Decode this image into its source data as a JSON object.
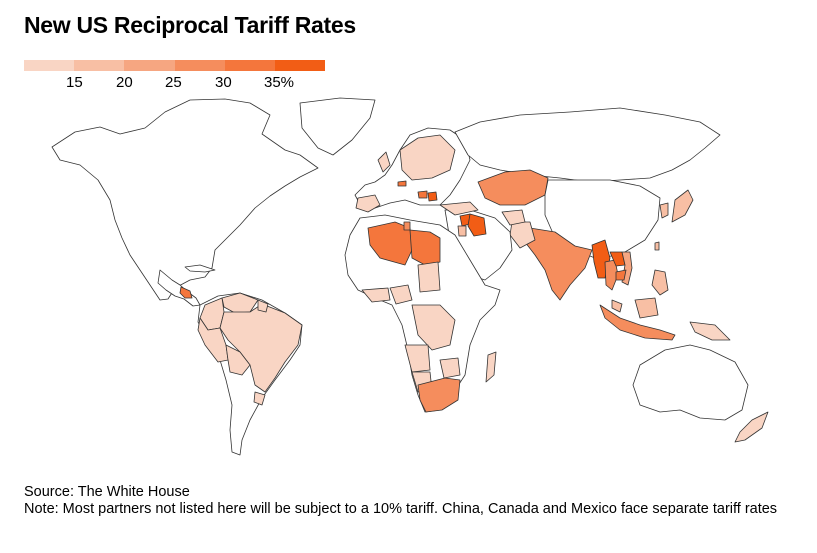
{
  "title": "New US Reciprocal Tariff Rates",
  "legend": {
    "colors": [
      "#f9d5c4",
      "#f8bfa4",
      "#f6a681",
      "#f58d5d",
      "#f4763c",
      "#f25d15"
    ],
    "labels": [
      "15",
      "20",
      "25",
      "30",
      "35%"
    ]
  },
  "map": {
    "land_color": "#ffffff",
    "border_color": "#333333",
    "countries": [
      {
        "name": "Brazil",
        "color": "#f9d5c4"
      },
      {
        "name": "Peru",
        "color": "#f9d5c4"
      },
      {
        "name": "Venezuela",
        "color": "#f9d5c4"
      },
      {
        "name": "Colombia",
        "color": "#f9d5c4"
      },
      {
        "name": "Bolivia",
        "color": "#f9d5c4"
      },
      {
        "name": "Nicaragua",
        "color": "#f4763c"
      },
      {
        "name": "Algeria",
        "color": "#f4763c"
      },
      {
        "name": "Libya",
        "color": "#f4763c"
      },
      {
        "name": "Iraq",
        "color": "#f25d15"
      },
      {
        "name": "Syria",
        "color": "#f25d15"
      },
      {
        "name": "Kazakhstan",
        "color": "#f58d5d"
      },
      {
        "name": "India",
        "color": "#f58d5d"
      },
      {
        "name": "Myanmar",
        "color": "#f25d15"
      },
      {
        "name": "Laos",
        "color": "#f25d15"
      },
      {
        "name": "Thailand",
        "color": "#f58d5d"
      },
      {
        "name": "Vietnam",
        "color": "#f6a681"
      },
      {
        "name": "South Africa",
        "color": "#f58d5d"
      },
      {
        "name": "Serbia",
        "color": "#f25d15"
      },
      {
        "name": "Bosnia",
        "color": "#f4763c"
      },
      {
        "name": "Switzerland",
        "color": "#f4763c"
      },
      {
        "name": "Indonesia",
        "color": "#f58d5d"
      },
      {
        "name": "Philippines",
        "color": "#f8bfa4"
      },
      {
        "name": "Japan",
        "color": "#f8bfa4"
      },
      {
        "name": "South Korea",
        "color": "#f8bfa4"
      },
      {
        "name": "Taiwan",
        "color": "#f8bfa4"
      }
    ]
  },
  "footer": {
    "source": "Source: The White House",
    "note": "Note: Most partners not listed here will be subject to a 10% tariff. China, Canada and Mexico face separate tariff rates"
  }
}
